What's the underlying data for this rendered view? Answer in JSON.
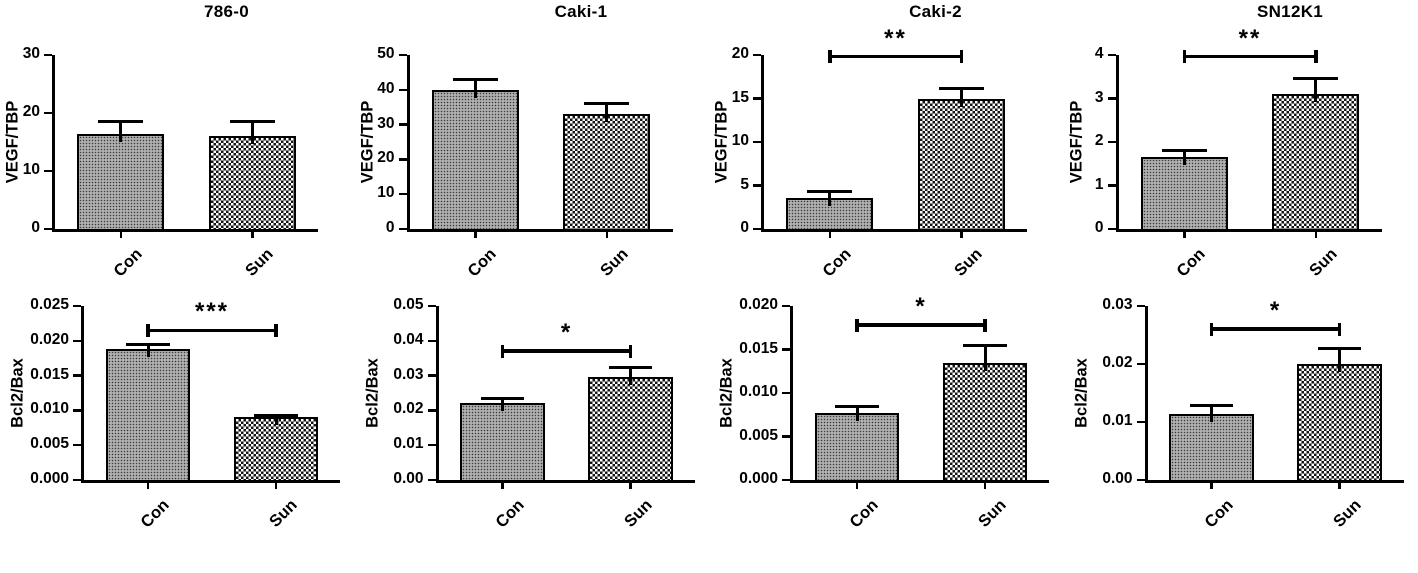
{
  "figure": {
    "cell_lines": [
      "786-0",
      "Caki-1",
      "Caki-2",
      "SN12K1"
    ],
    "row_measures": [
      "VEGF/TBP",
      "Bcl2/Bax"
    ],
    "x_categories": [
      "Con",
      "Sun"
    ],
    "bar_patterns": {
      "Con": "fine-dot-gray",
      "Sun": "black-white-checkerboard"
    }
  },
  "styles": {
    "background": "#ffffff",
    "axis_color": "#000000",
    "text_color": "#000000",
    "con_base_fill": "#b0b0b0",
    "con_dot_color": "#3c3c3c",
    "checker_dark": "#141414",
    "checker_light": "#fefefe"
  },
  "chart_data": [
    {
      "id": "vegf-786-0",
      "type": "bar",
      "title": "786-0",
      "ylabel": "VEGF/TBP",
      "categories": [
        "Con",
        "Sun"
      ],
      "values": [
        16.4,
        16.1
      ],
      "errors": [
        2.2,
        2.5
      ],
      "ylim": [
        0,
        30
      ],
      "ytick_step": 10,
      "ytick_decimals": 0,
      "significance": null
    },
    {
      "id": "vegf-caki-1",
      "type": "bar",
      "title": "Caki-1",
      "ylabel": "VEGF/TBP",
      "categories": [
        "Con",
        "Sun"
      ],
      "values": [
        40,
        33
      ],
      "errors": [
        3,
        3
      ],
      "ylim": [
        0,
        50
      ],
      "ytick_step": 10,
      "ytick_decimals": 0,
      "significance": null
    },
    {
      "id": "vegf-caki-2",
      "type": "bar",
      "title": "Caki-2",
      "ylabel": "VEGF/TBP",
      "categories": [
        "Con",
        "Sun"
      ],
      "values": [
        3.6,
        14.9
      ],
      "errors": [
        0.7,
        1.2
      ],
      "ylim": [
        0,
        20
      ],
      "ytick_step": 5,
      "ytick_decimals": 0,
      "significance": {
        "label": "**",
        "level": 19.8
      }
    },
    {
      "id": "vegf-sn12k1",
      "type": "bar",
      "title": "SN12K1",
      "ylabel": "VEGF/TBP",
      "categories": [
        "Con",
        "Sun"
      ],
      "values": [
        1.65,
        3.1
      ],
      "errors": [
        0.15,
        0.37
      ],
      "ylim": [
        0,
        4
      ],
      "ytick_step": 1,
      "ytick_decimals": 0,
      "significance": {
        "label": "**",
        "level": 3.96
      }
    },
    {
      "id": "bcl2-786-0",
      "type": "bar",
      "title": "",
      "ylabel": "Bcl2/Bax",
      "categories": [
        "Con",
        "Sun"
      ],
      "values": [
        0.0188,
        0.009
      ],
      "errors": [
        0.0007,
        0.0003
      ],
      "ylim": [
        0,
        0.025
      ],
      "ytick_step": 0.005,
      "ytick_decimals": 3,
      "significance": {
        "label": "***",
        "level": 0.0215
      }
    },
    {
      "id": "bcl2-caki-1",
      "type": "bar",
      "title": "",
      "ylabel": "Bcl2/Bax",
      "categories": [
        "Con",
        "Sun"
      ],
      "values": [
        0.022,
        0.0297
      ],
      "errors": [
        0.0014,
        0.0027
      ],
      "ylim": [
        0,
        0.05
      ],
      "ytick_step": 0.01,
      "ytick_decimals": 2,
      "significance": {
        "label": "*",
        "level": 0.037
      }
    },
    {
      "id": "bcl2-caki-2",
      "type": "bar",
      "title": "",
      "ylabel": "Bcl2/Bax",
      "categories": [
        "Con",
        "Sun"
      ],
      "values": [
        0.0077,
        0.0134
      ],
      "errors": [
        0.0007,
        0.0021
      ],
      "ylim": [
        0,
        0.02
      ],
      "ytick_step": 0.005,
      "ytick_decimals": 3,
      "significance": {
        "label": "*",
        "level": 0.0178
      }
    },
    {
      "id": "bcl2-sn12k1",
      "type": "bar",
      "title": "",
      "ylabel": "Bcl2/Bax",
      "categories": [
        "Con",
        "Sun"
      ],
      "values": [
        0.0114,
        0.02
      ],
      "errors": [
        0.0014,
        0.0027
      ],
      "ylim": [
        0,
        0.03
      ],
      "ytick_step": 0.01,
      "ytick_decimals": 2,
      "significance": {
        "label": "*",
        "level": 0.026
      }
    }
  ]
}
